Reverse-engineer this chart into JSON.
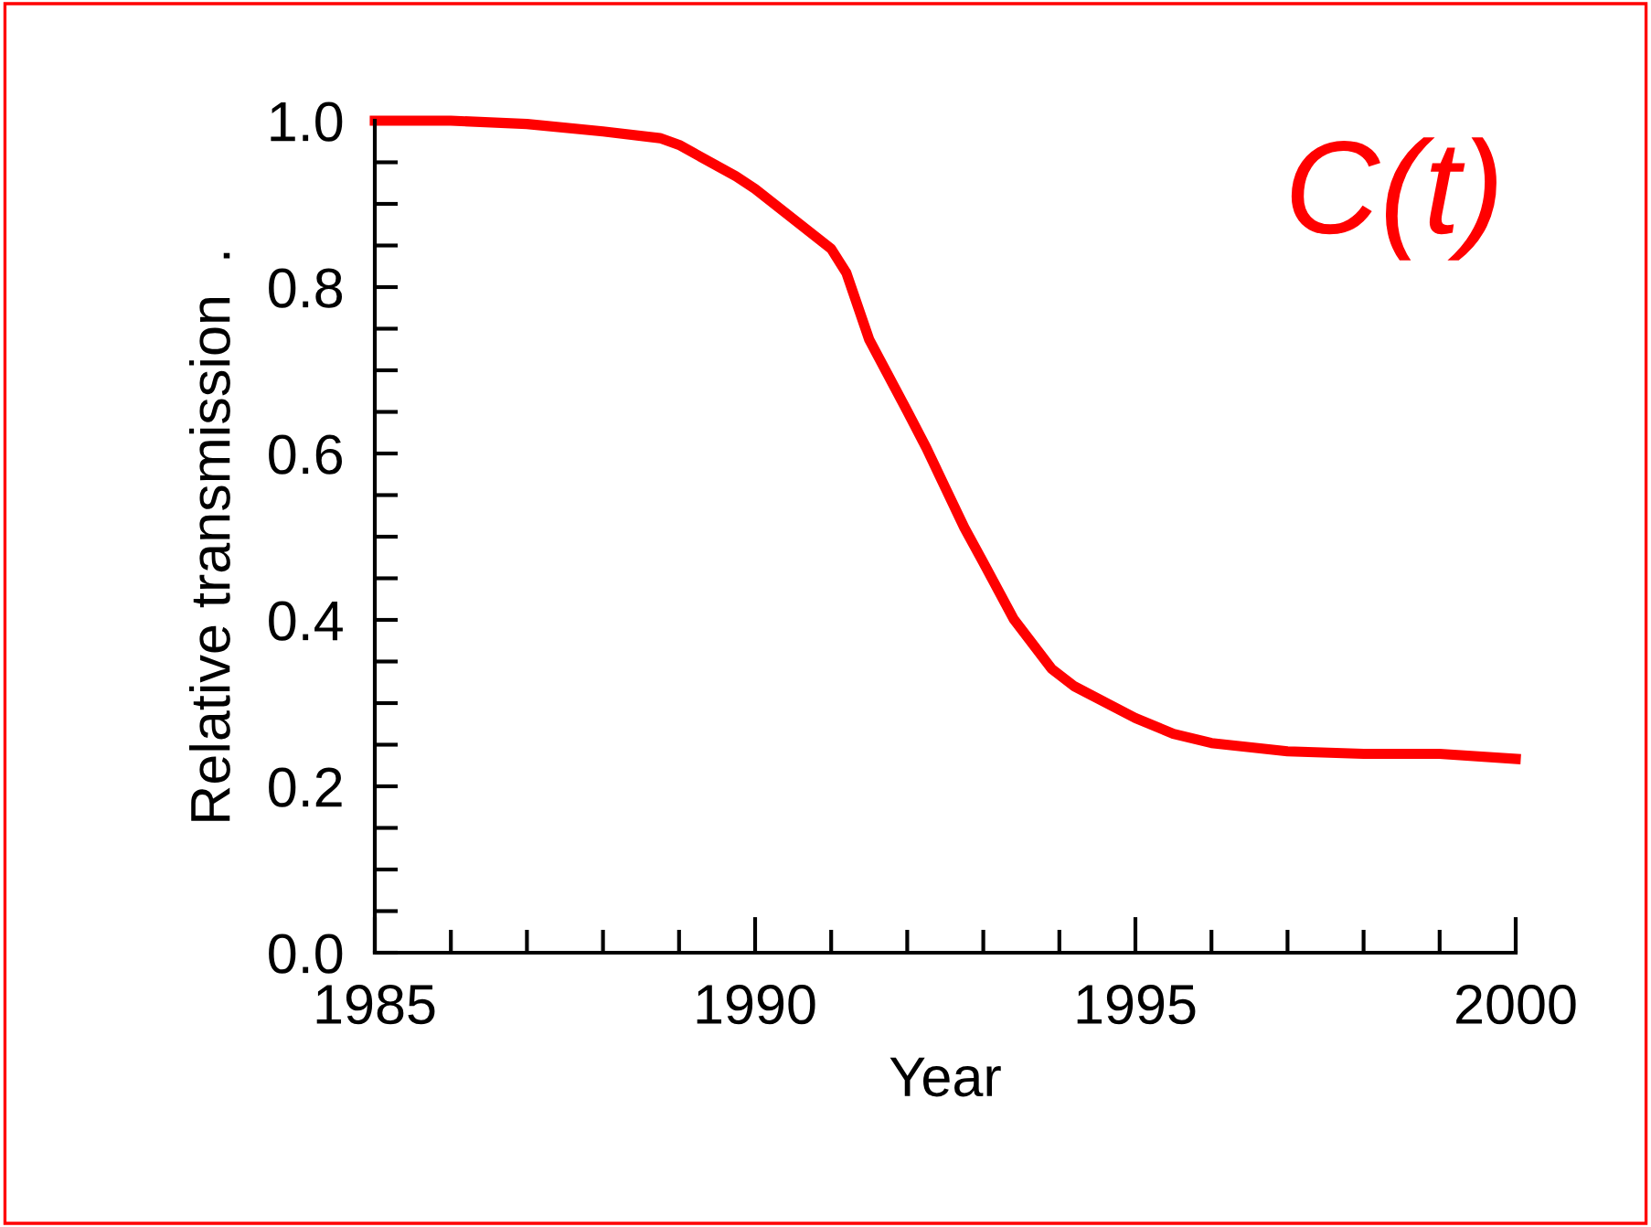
{
  "chart_data": {
    "type": "line",
    "xlabel": "Year",
    "ylabel": "Relative transmission  .",
    "x": [
      1985,
      1986,
      1987,
      1988,
      1988.75,
      1989,
      1989.75,
      1990,
      1991,
      1991.2,
      1991.5,
      1992,
      1992.25,
      1992.5,
      1992.75,
      1993,
      1993.4,
      1993.9,
      1994.2,
      1995,
      1995.5,
      1996,
      1997,
      1998,
      1999,
      2000
    ],
    "series": [
      {
        "color": "#ff0000",
        "values": [
          1.0,
          1.0,
          0.996,
          0.987,
          0.979,
          0.971,
          0.933,
          0.918,
          0.846,
          0.817,
          0.737,
          0.651,
          0.607,
          0.559,
          0.511,
          0.469,
          0.401,
          0.341,
          0.32,
          0.282,
          0.263,
          0.252,
          0.242,
          0.239,
          0.239,
          0.233
        ]
      }
    ],
    "xlim": [
      1985,
      2000
    ],
    "xticks": [
      1985,
      1990,
      1995,
      2000
    ],
    "ylim": [
      0,
      1.0
    ],
    "yticks": [
      {
        "value": 0,
        "label": "0.0"
      },
      {
        "value": 0.2,
        "label": "0.2"
      },
      {
        "value": 0.4,
        "label": "0.4"
      },
      {
        "value": 0.6,
        "label": "0.6"
      },
      {
        "value": 0.8,
        "label": "0.8"
      },
      {
        "value": 1.0,
        "label": "1.0"
      }
    ],
    "annotations": [
      "C(t)"
    ],
    "grid": false,
    "legend": false,
    "marker": "none",
    "line_style": "solid"
  }
}
